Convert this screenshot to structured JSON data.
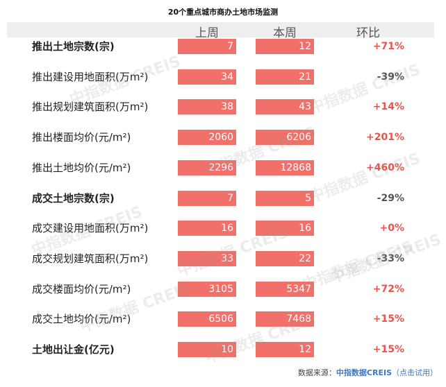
{
  "chart_data": {
    "type": "table",
    "title": "20个重点城市商办土地市场监测",
    "columns": [
      "上周",
      "本周",
      "环比"
    ],
    "rows": [
      {
        "label": "推出土地宗数(宗)",
        "bold": true,
        "prev": 7,
        "curr": 12,
        "change": "+71%"
      },
      {
        "label": "推出建设用地面积(万m²)",
        "bold": false,
        "prev": 34,
        "curr": 21,
        "change": "-39%"
      },
      {
        "label": "推出规划建筑面积(万m²)",
        "bold": false,
        "prev": 38,
        "curr": 43,
        "change": "+14%"
      },
      {
        "label": "推出楼面均价(元/m²)",
        "bold": false,
        "prev": 2060,
        "curr": 6206,
        "change": "+201%"
      },
      {
        "label": "推出土地均价(元/m²)",
        "bold": false,
        "prev": 2296,
        "curr": 12868,
        "change": "+460%"
      },
      {
        "label": "成交土地宗数(宗)",
        "bold": true,
        "prev": 7,
        "curr": 5,
        "change": "-29%"
      },
      {
        "label": "成交建设用地面积(万m²)",
        "bold": false,
        "prev": 16,
        "curr": 16,
        "change": "+0%"
      },
      {
        "label": "成交规划建筑面积(万m²)",
        "bold": false,
        "prev": 33,
        "curr": 22,
        "change": "-33%"
      },
      {
        "label": "成交楼面均价(元/m²)",
        "bold": false,
        "prev": 3105,
        "curr": 5347,
        "change": "+72%"
      },
      {
        "label": "成交土地均价(元/m²)",
        "bold": false,
        "prev": 6506,
        "curr": 7468,
        "change": "+15%"
      },
      {
        "label": "土地出让金(亿元)",
        "bold": true,
        "prev": 10,
        "curr": 12,
        "change": "+15%"
      }
    ]
  },
  "colors": {
    "bar": "#f2706a",
    "increase": "#e8534b",
    "decrease": "#555555",
    "header_band": "#eeeeee",
    "source_brand": "#3a78c3"
  },
  "source": {
    "prefix": "数据来源：",
    "brand": "中指数据CREIS",
    "link": "（点击试用）"
  },
  "watermark": "中指数据 CREIS"
}
